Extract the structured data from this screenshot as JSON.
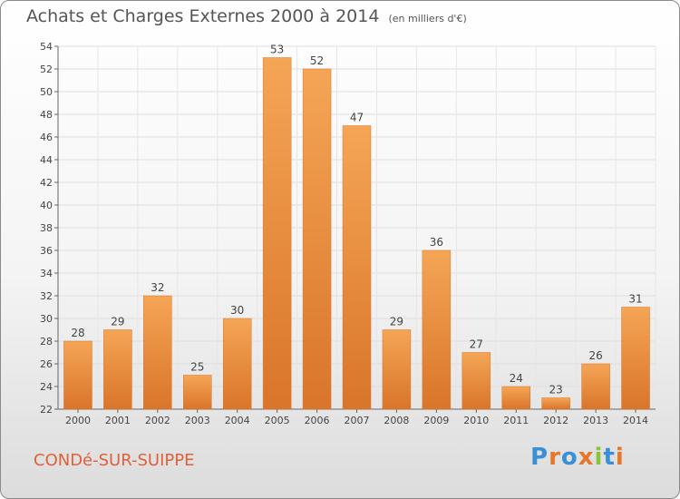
{
  "header": {
    "title": "Achats et Charges Externes 2000 à 2014",
    "subtitle": "(en milliers d'€)"
  },
  "footer": {
    "town": "CONDé-SUR-SUIPPE",
    "logo": "Proxiti"
  },
  "colors": {
    "bar_light": "#f5a556",
    "bar_dark": "#d9752a",
    "town": "#e0603a",
    "logo_letters": [
      "#3a8fd6",
      "#e6762a",
      "#3a8fd6",
      "#e6762a",
      "#8ac43f",
      "#3a8fd6",
      "#e6762a"
    ]
  },
  "chart_data": {
    "type": "bar",
    "title": "Achats et Charges Externes 2000 à 2014",
    "subtitle": "(en milliers d'€)",
    "categories": [
      "2000",
      "2001",
      "2002",
      "2003",
      "2004",
      "2005",
      "2006",
      "2007",
      "2008",
      "2009",
      "2010",
      "2011",
      "2012",
      "2013",
      "2014"
    ],
    "values": [
      28,
      29,
      32,
      25,
      30,
      53,
      52,
      47,
      29,
      36,
      27,
      24,
      23,
      26,
      31
    ],
    "ylim": [
      22,
      54
    ],
    "yticks": [
      "22",
      "24",
      "26",
      "28",
      "30",
      "32",
      "34",
      "36",
      "38",
      "40",
      "42",
      "44",
      "46",
      "48",
      "50",
      "52",
      "54"
    ],
    "grid": true,
    "legend": "none"
  }
}
